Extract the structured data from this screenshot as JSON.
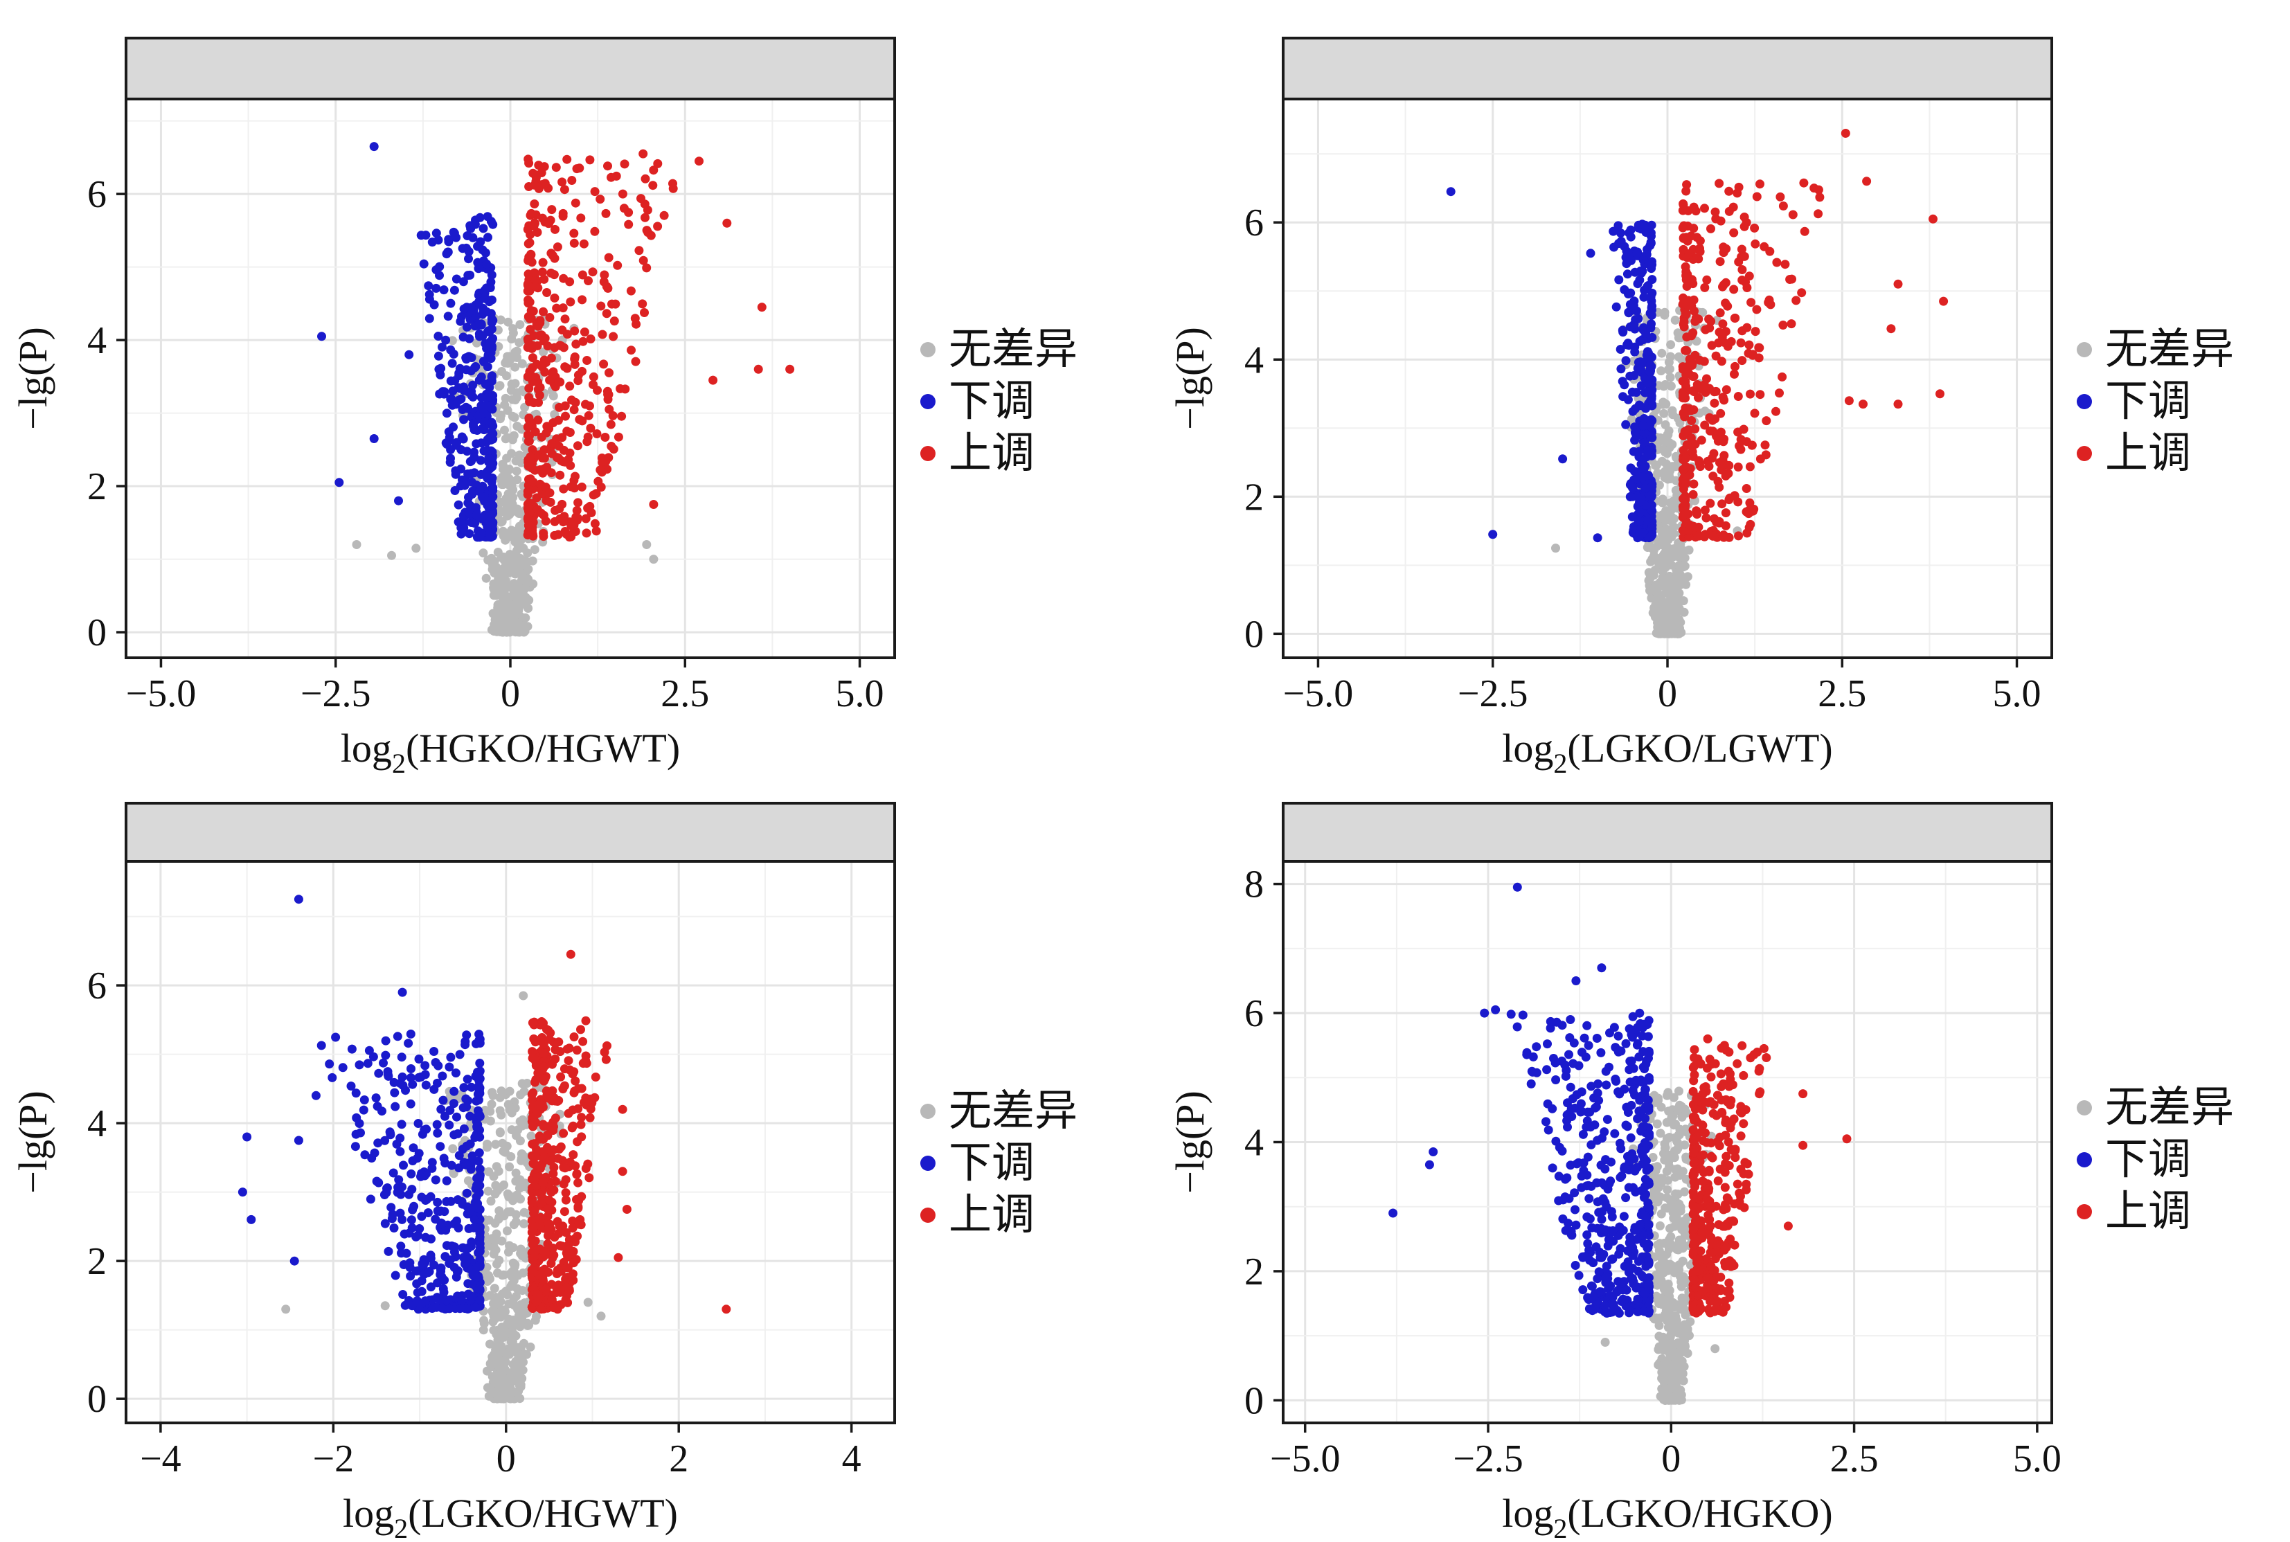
{
  "legend": {
    "items": [
      {
        "label": "无差异",
        "color": "#b8b8b8"
      },
      {
        "label": "下调",
        "color": "#1a1acc"
      },
      {
        "label": "上调",
        "color": "#dd2222"
      }
    ]
  },
  "chart_data": [
    {
      "type": "scatter",
      "title": "",
      "xlabel_prefix": "log",
      "xlabel_sub": "2",
      "xlabel_main": "(HGKO/HGWT)",
      "ylabel": "−lg(P)",
      "xlim": [
        -5.5,
        5.5
      ],
      "ylim": [
        -0.35,
        7.3
      ],
      "xticks": [
        -5.0,
        -2.5,
        0,
        2.5,
        5.0
      ],
      "xtick_labels": [
        "−5.0",
        "−2.5",
        "0",
        "2.5",
        "5.0"
      ],
      "yticks": [
        0,
        2,
        4,
        6
      ],
      "ytick_labels": [
        "0",
        "2",
        "4",
        "6"
      ],
      "grid": true,
      "strip": true,
      "series": [
        {
          "name": "无差异",
          "color": "#b8b8b8",
          "cloud": {
            "count": 520,
            "xSpread": 0.95,
            "yMax": 4.3,
            "seed": 11
          },
          "points": [
            [
              -1.7,
              1.05
            ],
            [
              -1.35,
              1.15
            ],
            [
              1.95,
              1.2
            ],
            [
              2.05,
              1.0
            ],
            [
              -2.2,
              1.2
            ]
          ]
        },
        {
          "name": "下调",
          "color": "#1a1acc",
          "cloud": {
            "side": -1,
            "xMin": 0.25,
            "xSpan": 1.1,
            "yMin": 1.3,
            "yMax": 5.7,
            "count": 380,
            "seed": 21
          },
          "points": [
            [
              -1.95,
              6.65
            ],
            [
              -2.7,
              4.05
            ],
            [
              -2.45,
              2.05
            ],
            [
              -1.95,
              2.65
            ],
            [
              -1.6,
              1.8
            ],
            [
              -1.45,
              3.8
            ]
          ]
        },
        {
          "name": "上调",
          "color": "#dd2222",
          "cloud": {
            "side": 1,
            "xMin": 0.25,
            "xSpan": 2.2,
            "yMin": 1.3,
            "yMax": 6.5,
            "count": 420,
            "seed": 31
          },
          "points": [
            [
              4.0,
              3.6
            ],
            [
              3.6,
              4.45
            ],
            [
              3.55,
              3.6
            ],
            [
              3.1,
              5.6
            ],
            [
              2.7,
              6.45
            ],
            [
              2.05,
              1.75
            ],
            [
              2.9,
              3.45
            ],
            [
              1.9,
              6.55
            ]
          ]
        }
      ]
    },
    {
      "type": "scatter",
      "title": "",
      "xlabel_prefix": "log",
      "xlabel_sub": "2",
      "xlabel_main": "(LGKO/LGWT)",
      "ylabel": "−lg(P)",
      "xlim": [
        -5.5,
        5.5
      ],
      "ylim": [
        -0.35,
        7.8
      ],
      "xticks": [
        -5.0,
        -2.5,
        0,
        2.5,
        5.0
      ],
      "xtick_labels": [
        "−5.0",
        "−2.5",
        "0",
        "2.5",
        "5.0"
      ],
      "yticks": [
        0,
        2,
        4,
        6
      ],
      "ytick_labels": [
        "0",
        "2",
        "4",
        "6"
      ],
      "grid": true,
      "strip": true,
      "series": [
        {
          "name": "无差异",
          "color": "#b8b8b8",
          "cloud": {
            "count": 520,
            "xSpread": 0.75,
            "yMax": 4.8,
            "seed": 12
          },
          "points": [
            [
              -1.6,
              1.25
            ],
            [
              -2.5,
              1.45
            ],
            [
              1.0,
              1.5
            ]
          ]
        },
        {
          "name": "下调",
          "color": "#1a1acc",
          "cloud": {
            "side": -1,
            "xMin": 0.22,
            "xSpan": 0.6,
            "yMin": 1.4,
            "yMax": 6.0,
            "count": 330,
            "seed": 22
          },
          "points": [
            [
              -3.1,
              6.45
            ],
            [
              -2.5,
              1.45
            ],
            [
              -1.1,
              5.55
            ],
            [
              -1.5,
              2.55
            ],
            [
              -1.0,
              1.4
            ]
          ]
        },
        {
          "name": "上调",
          "color": "#dd2222",
          "cloud": {
            "side": 1,
            "xMin": 0.22,
            "xSpan": 2.1,
            "yMin": 1.4,
            "yMax": 6.6,
            "count": 360,
            "seed": 32
          },
          "points": [
            [
              2.55,
              7.3
            ],
            [
              2.85,
              6.6
            ],
            [
              3.8,
              6.05
            ],
            [
              3.95,
              4.85
            ],
            [
              3.3,
              5.1
            ],
            [
              3.9,
              3.5
            ],
            [
              3.3,
              3.35
            ],
            [
              2.6,
              3.4
            ],
            [
              2.8,
              3.35
            ],
            [
              3.2,
              4.45
            ]
          ]
        }
      ]
    },
    {
      "type": "scatter",
      "title": "",
      "xlabel_prefix": "log",
      "xlabel_sub": "2",
      "xlabel_main": "(LGKO/HGWT)",
      "ylabel": "−lg(P)",
      "xlim": [
        -4.4,
        4.5
      ],
      "ylim": [
        -0.35,
        7.8
      ],
      "xticks": [
        -4,
        -2,
        0,
        2,
        4
      ],
      "xtick_labels": [
        "−4",
        "−2",
        "0",
        "2",
        "4"
      ],
      "yticks": [
        0,
        2,
        4,
        6
      ],
      "ytick_labels": [
        "0",
        "2",
        "4",
        "6"
      ],
      "grid": true,
      "strip": true,
      "series": [
        {
          "name": "无差异",
          "color": "#b8b8b8",
          "cloud": {
            "count": 520,
            "xSpread": 0.75,
            "yMax": 4.6,
            "seed": 13
          },
          "points": [
            [
              0.2,
              5.85
            ],
            [
              -2.55,
              1.3
            ],
            [
              -1.4,
              1.35
            ],
            [
              1.1,
              1.2
            ],
            [
              0.95,
              1.4
            ]
          ]
        },
        {
          "name": "下调",
          "color": "#1a1acc",
          "cloud": {
            "side": -1,
            "xMin": 0.3,
            "xSpan": 1.9,
            "yMin": 1.3,
            "yMax": 5.3,
            "count": 420,
            "seed": 23
          },
          "points": [
            [
              -2.4,
              7.25
            ],
            [
              -1.2,
              5.9
            ],
            [
              -3.0,
              3.8
            ],
            [
              -3.05,
              3.0
            ],
            [
              -2.95,
              2.6
            ],
            [
              -2.4,
              3.75
            ],
            [
              -2.45,
              2.0
            ],
            [
              -2.2,
              4.4
            ]
          ]
        },
        {
          "name": "上调",
          "color": "#dd2222",
          "cloud": {
            "side": 1,
            "xMin": 0.3,
            "xSpan": 0.95,
            "yMin": 1.3,
            "yMax": 5.5,
            "count": 420,
            "seed": 33
          },
          "points": [
            [
              0.75,
              6.45
            ],
            [
              2.55,
              1.3
            ],
            [
              1.35,
              3.3
            ],
            [
              1.4,
              2.75
            ],
            [
              1.3,
              2.05
            ],
            [
              1.35,
              4.2
            ]
          ]
        }
      ]
    },
    {
      "type": "scatter",
      "title": "",
      "xlabel_prefix": "log",
      "xlabel_sub": "2",
      "xlabel_main": "(LGKO/HGKO)",
      "ylabel": "−lg(P)",
      "xlim": [
        -5.3,
        5.2
      ],
      "ylim": [
        -0.35,
        8.35
      ],
      "xticks": [
        -5.0,
        -2.5,
        0,
        2.5,
        5.0
      ],
      "xtick_labels": [
        "−5.0",
        "−2.5",
        "0",
        "2.5",
        "5.0"
      ],
      "yticks": [
        0,
        2,
        4,
        6,
        8
      ],
      "ytick_labels": [
        "0",
        "2",
        "4",
        "6",
        "8"
      ],
      "grid": true,
      "strip": true,
      "series": [
        {
          "name": "无差异",
          "color": "#b8b8b8",
          "cloud": {
            "count": 520,
            "xSpread": 0.6,
            "yMax": 4.8,
            "seed": 14
          },
          "points": [
            [
              -0.9,
              0.9
            ],
            [
              0.6,
              0.8
            ]
          ]
        },
        {
          "name": "下调",
          "color": "#1a1acc",
          "cloud": {
            "side": -1,
            "xMin": 0.3,
            "xSpan": 1.9,
            "yMin": 1.35,
            "yMax": 6.0,
            "count": 480,
            "seed": 24
          },
          "points": [
            [
              -2.1,
              7.95
            ],
            [
              -2.4,
              6.05
            ],
            [
              -2.55,
              6.0
            ],
            [
              -0.95,
              6.7
            ],
            [
              -3.8,
              2.9
            ],
            [
              -3.25,
              3.85
            ],
            [
              -3.3,
              3.65
            ],
            [
              -1.3,
              6.5
            ]
          ]
        },
        {
          "name": "上调",
          "color": "#dd2222",
          "cloud": {
            "side": 1,
            "xMin": 0.3,
            "xSpan": 1.05,
            "yMin": 1.35,
            "yMax": 5.5,
            "count": 380,
            "seed": 34
          },
          "points": [
            [
              2.4,
              4.05
            ],
            [
              1.8,
              3.95
            ],
            [
              1.6,
              2.7
            ],
            [
              1.8,
              4.75
            ],
            [
              1.2,
              5.1
            ],
            [
              0.5,
              5.6
            ]
          ]
        }
      ]
    }
  ]
}
